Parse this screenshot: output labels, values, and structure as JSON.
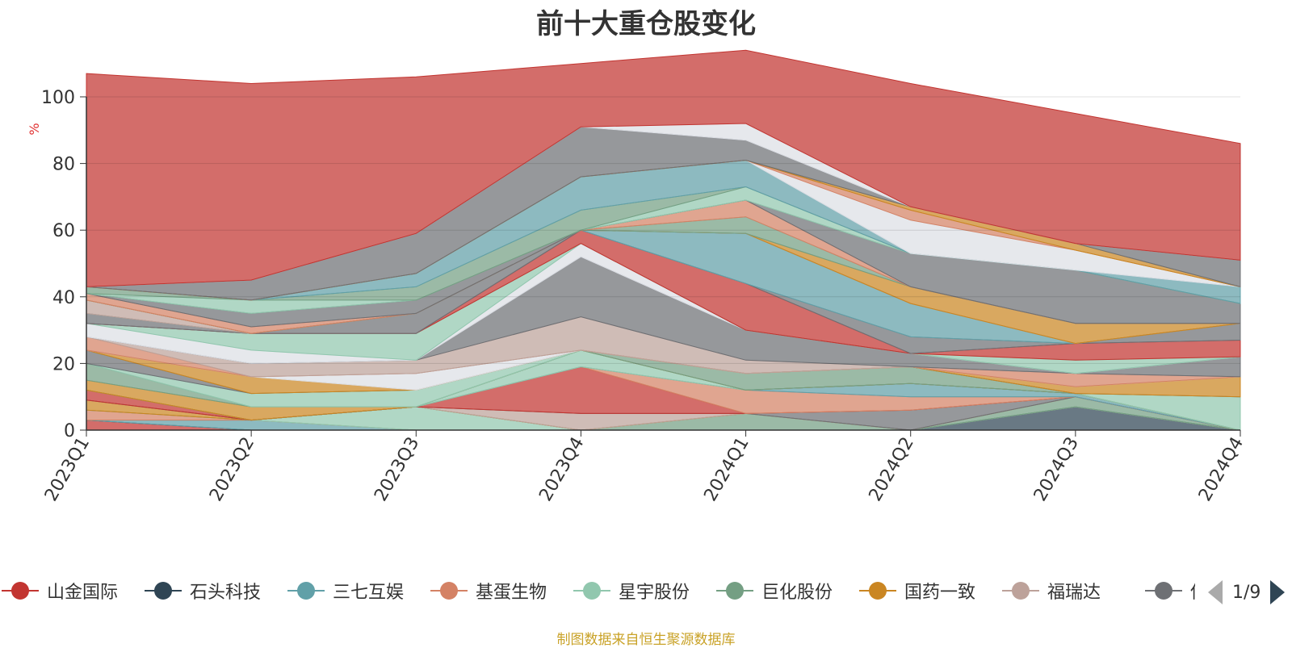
{
  "chart_data": {
    "type": "area",
    "title": "前十大重仓股变化",
    "ylabel": "%",
    "ylim": [
      0,
      100
    ],
    "y_ticks": [
      0,
      20,
      40,
      60,
      80,
      100
    ],
    "categories": [
      "2023Q1",
      "2023Q2",
      "2023Q3",
      "2023Q4",
      "2024Q1",
      "2024Q2",
      "2024Q3",
      "2024Q4"
    ],
    "stacked_to": 100,
    "series": [
      {
        "name": "山金国际",
        "color": "#c23531",
        "values": [
          3,
          0,
          0,
          0,
          0,
          0,
          0,
          0
        ]
      },
      {
        "name": "石头科技",
        "color": "#2f4554",
        "values": [
          0,
          0,
          0,
          0,
          0,
          0,
          7,
          0
        ]
      },
      {
        "name": "三七互娱",
        "color": "#61a0a8",
        "values": [
          0,
          3,
          0,
          0,
          0,
          0,
          0,
          0
        ]
      },
      {
        "name": "基蛋生物",
        "color": "#d48265",
        "values": [
          3,
          0,
          0,
          0,
          0,
          0,
          0,
          0
        ]
      },
      {
        "name": "星宇股份",
        "color": "#91c7ae",
        "values": [
          0,
          0,
          7,
          0,
          0,
          0,
          0,
          0
        ]
      },
      {
        "name": "巨化股份",
        "color": "#749f83",
        "values": [
          0,
          0,
          0,
          0,
          5,
          0,
          3,
          0
        ]
      },
      {
        "name": "国药一致",
        "color": "#ca8622",
        "values": [
          3,
          0,
          0,
          0,
          0,
          0,
          0,
          0
        ]
      },
      {
        "name": "福瑞达",
        "color": "#bda29a",
        "values": [
          0,
          0,
          0,
          5,
          0,
          0,
          0,
          0
        ]
      },
      {
        "name": "伊利股份",
        "color": "#6e7074",
        "values": [
          0,
          0,
          0,
          0,
          0,
          6,
          0,
          0
        ]
      },
      {
        "color": "#c23531",
        "values": [
          3,
          0,
          0,
          14,
          0,
          0,
          0,
          0
        ]
      },
      {
        "color": "#d48265",
        "values": [
          0,
          0,
          0,
          0,
          7,
          4,
          0,
          0
        ]
      },
      {
        "color": "#61a0a8",
        "values": [
          0,
          0,
          0,
          0,
          0,
          4,
          1,
          0
        ]
      },
      {
        "color": "#91c7ae",
        "values": [
          0,
          0,
          0,
          5,
          0,
          0,
          0,
          0
        ]
      },
      {
        "color": "#6e7074",
        "values": [
          0,
          0,
          0,
          0,
          0,
          0,
          0,
          0
        ]
      },
      {
        "color": "#ca8622",
        "values": [
          3,
          4,
          0,
          0,
          0,
          0,
          0,
          0
        ]
      },
      {
        "color": "#749f83",
        "values": [
          5,
          0,
          0,
          0,
          5,
          5,
          0,
          0
        ]
      },
      {
        "color": "#91c7ae",
        "values": [
          0,
          4,
          5,
          0,
          0,
          0,
          0,
          10
        ]
      },
      {
        "color": "#6e7074",
        "values": [
          4,
          0,
          0,
          0,
          0,
          0,
          0,
          0
        ]
      },
      {
        "color": "#ca8622",
        "values": [
          0,
          5,
          0,
          0,
          0,
          0,
          2,
          6
        ]
      },
      {
        "color": "#dcdfe5",
        "values": [
          0,
          0,
          5,
          0,
          0,
          0,
          0,
          0
        ]
      },
      {
        "color": "#d48265",
        "values": [
          4,
          0,
          0,
          0,
          0,
          0,
          4,
          0
        ]
      },
      {
        "color": "#bda29a",
        "values": [
          0,
          4,
          4,
          10,
          4,
          0,
          0,
          0
        ]
      },
      {
        "color": "#6e7074",
        "values": [
          0,
          0,
          0,
          18,
          9,
          4,
          0,
          6
        ]
      },
      {
        "color": "#dcdfe5",
        "values": [
          4,
          4,
          0,
          4,
          0,
          0,
          0,
          0
        ]
      },
      {
        "color": "#91c7ae",
        "values": [
          0,
          5,
          8,
          0,
          0,
          0,
          4,
          0
        ]
      },
      {
        "color": "#c23531",
        "values": [
          0,
          0,
          0,
          4,
          14,
          0,
          5,
          5
        ]
      },
      {
        "color": "#6e7074",
        "values": [
          3,
          0,
          6,
          0,
          0,
          5,
          0,
          5
        ]
      },
      {
        "color": "#61a0a8",
        "values": [
          0,
          0,
          0,
          0,
          15,
          10,
          0,
          0
        ]
      },
      {
        "color": "#bda29a",
        "values": [
          4,
          0,
          0,
          0,
          0,
          0,
          0,
          0
        ]
      },
      {
        "color": "#ca8622",
        "values": [
          0,
          0,
          0,
          0,
          0,
          5,
          6,
          0
        ]
      },
      {
        "color": "#749f83",
        "values": [
          0,
          0,
          0,
          0,
          5,
          0,
          0,
          0
        ]
      },
      {
        "color": "#d48265",
        "values": [
          2,
          2,
          0,
          0,
          5,
          0,
          0,
          0
        ]
      },
      {
        "color": "#6e7074",
        "values": [
          0,
          4,
          4,
          0,
          0,
          10,
          16,
          6
        ]
      },
      {
        "color": "#91c7ae",
        "values": [
          0,
          4,
          0,
          0,
          4,
          0,
          0,
          0
        ]
      },
      {
        "color": "#749f83",
        "values": [
          2,
          0,
          4,
          6,
          0,
          0,
          0,
          0
        ]
      },
      {
        "color": "#61a0a8",
        "values": [
          0,
          0,
          4,
          10,
          8,
          0,
          0,
          5
        ]
      },
      {
        "color": "#dcdfe5",
        "values": [
          0,
          0,
          0,
          0,
          0,
          10,
          6,
          0
        ]
      },
      {
        "color": "#d48265",
        "values": [
          0,
          0,
          0,
          0,
          0,
          3,
          0,
          0
        ]
      },
      {
        "color": "#ca8622",
        "values": [
          0,
          0,
          0,
          0,
          0,
          1,
          2,
          0
        ]
      },
      {
        "color": "#6e7074",
        "values": [
          0,
          6,
          12,
          15,
          6,
          0,
          0,
          8
        ]
      },
      {
        "color": "#dcdfe5",
        "values": [
          0,
          0,
          0,
          0,
          5,
          0,
          0,
          0
        ]
      },
      {
        "color": "#c23531",
        "values": [
          64,
          59,
          47,
          19,
          22,
          37,
          39,
          35
        ]
      }
    ]
  },
  "legend": {
    "items": [
      {
        "label": "山金国际",
        "color": "#c23531"
      },
      {
        "label": "石头科技",
        "color": "#2f4554"
      },
      {
        "label": "三七互娱",
        "color": "#61a0a8"
      },
      {
        "label": "基蛋生物",
        "color": "#d48265"
      },
      {
        "label": "星宇股份",
        "color": "#91c7ae"
      },
      {
        "label": "巨化股份",
        "color": "#749f83"
      },
      {
        "label": "国药一致",
        "color": "#ca8622"
      },
      {
        "label": "福瑞达",
        "color": "#bda29a"
      },
      {
        "label": "伊利股份",
        "color": "#6e7074"
      }
    ],
    "page": "1/9"
  },
  "axis_label_color": "#e03030",
  "source_note": "制图数据来自恒生聚源数据库"
}
